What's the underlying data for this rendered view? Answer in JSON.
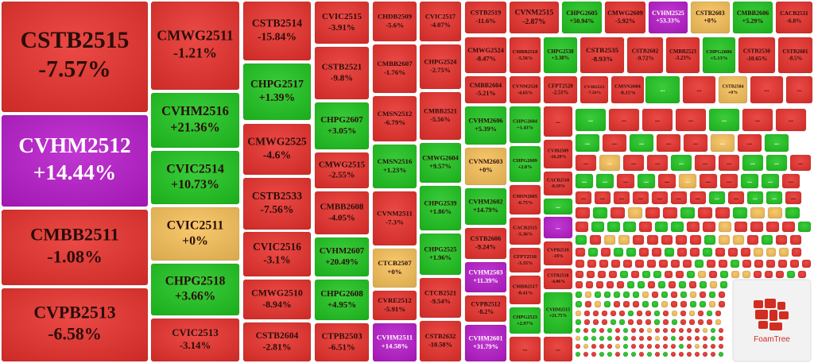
{
  "tiles": [
    {
      "code": "CSTB2515",
      "change": "-7.57%",
      "color": "#e8312c"
    },
    {
      "code": "CVHM2512",
      "change": "+14.44%",
      "color": "#b81ccb"
    },
    {
      "code": "CMBB2511",
      "change": "-1.08%",
      "color": "#e8312c"
    },
    {
      "code": "CVPB2513",
      "change": "-6.58%",
      "color": "#e8312c"
    },
    {
      "code": "CMWG2511",
      "change": "-1.21%",
      "color": "#e8312c"
    },
    {
      "code": "CVHM2516",
      "change": "+21.36%",
      "color": "#20c520"
    },
    {
      "code": "CVIC2514",
      "change": "+10.73%",
      "color": "#20c520"
    },
    {
      "code": "CVIC2511",
      "change": "+0%",
      "color": "#f8c15a"
    },
    {
      "code": "CHPG2518",
      "change": "+3.66%",
      "color": "#20c520"
    },
    {
      "code": "CVIC2513",
      "change": "-3.14%",
      "color": "#e8312c"
    },
    {
      "code": "CSTB2514",
      "change": "-15.84%",
      "color": "#e8312c"
    },
    {
      "code": "CHPG2517",
      "change": "+1.39%",
      "color": "#20c520"
    },
    {
      "code": "CMWG2525",
      "change": "-4.6%",
      "color": "#e8312c"
    },
    {
      "code": "CSTB2533",
      "change": "-7.56%",
      "color": "#e8312c"
    },
    {
      "code": "CVIC2516",
      "change": "-3.1%",
      "color": "#e8312c"
    },
    {
      "code": "CMWG2510",
      "change": "-8.94%",
      "color": "#e8312c"
    },
    {
      "code": "CSTB2604",
      "change": "-2.81%",
      "color": "#e8312c"
    },
    {
      "code": "CVIC2515",
      "change": "-3.91%",
      "color": "#e8312c"
    },
    {
      "code": "CSTB2521",
      "change": "-9.8%",
      "color": "#e8312c"
    },
    {
      "code": "CHPG2607",
      "change": "+3.05%",
      "color": "#20c520"
    },
    {
      "code": "CMWG2515",
      "change": "-2.55%",
      "color": "#e8312c"
    },
    {
      "code": "CMBB2608",
      "change": "-4.05%",
      "color": "#e8312c"
    },
    {
      "code": "CVHM2607",
      "change": "+20.49%",
      "color": "#20c520"
    },
    {
      "code": "CHPG2608",
      "change": "+4.95%",
      "color": "#20c520"
    },
    {
      "code": "CTPB2503",
      "change": "-6.51%",
      "color": "#e8312c"
    },
    {
      "code": "CHDB2509",
      "change": "-5.6%",
      "color": "#e8312c"
    },
    {
      "code": "CMBB2607",
      "change": "-1.76%",
      "color": "#e8312c"
    },
    {
      "code": "CMSN2512",
      "change": "-6.79%",
      "color": "#e8312c"
    },
    {
      "code": "CMSN2516",
      "change": "+1.23%",
      "color": "#20c520"
    },
    {
      "code": "CVNM2511",
      "change": "-7.3%",
      "color": "#e8312c"
    },
    {
      "code": "CTCB2507",
      "change": "+0%",
      "color": "#f8c15a"
    },
    {
      "code": "CVRE2512",
      "change": "-5.91%",
      "color": "#e8312c"
    },
    {
      "code": "CVHM2511",
      "change": "+14.58%",
      "color": "#b81ccb"
    },
    {
      "code": "CVIC2517",
      "change": "-4.07%",
      "color": "#e8312c"
    },
    {
      "code": "CHPG2524",
      "change": "-2.75%",
      "color": "#e8312c"
    },
    {
      "code": "CMBB2521",
      "change": "-5.56%",
      "color": "#e8312c"
    },
    {
      "code": "CMWG2604",
      "change": "+9.57%",
      "color": "#20c520"
    },
    {
      "code": "CHPG2539",
      "change": "+1.86%",
      "color": "#20c520"
    },
    {
      "code": "CHPG2525",
      "change": "+1.96%",
      "color": "#20c520"
    },
    {
      "code": "CTCB2521",
      "change": "-9.54%",
      "color": "#e8312c"
    },
    {
      "code": "CSTB2632",
      "change": "-10.58%",
      "color": "#e8312c"
    },
    {
      "code": "CSTB2519",
      "change": "-11.6%",
      "color": "#e8312c"
    },
    {
      "code": "CVNM2515",
      "change": "-2.87%",
      "color": "#e8312c"
    },
    {
      "code": "CHPG2605",
      "change": "+50.94%",
      "color": "#20c520"
    },
    {
      "code": "CMWG2609",
      "change": "-5.92%",
      "color": "#e8312c"
    },
    {
      "code": "CVHM2525",
      "change": "+53.33%",
      "color": "#b81ccb"
    },
    {
      "code": "CSTB2603",
      "change": "+0%",
      "color": "#f8c15a"
    },
    {
      "code": "CMBB2606",
      "change": "+5.29%",
      "color": "#20c520"
    },
    {
      "code": "CACB2511",
      "change": "-6.8%",
      "color": "#e8312c"
    },
    {
      "code": "CMWG2524",
      "change": "-8.47%",
      "color": "#e8312c"
    },
    {
      "code": "CMBB2518",
      "change": "-5.56%",
      "color": "#e8312c"
    },
    {
      "code": "CHPG2538",
      "change": "+3.38%",
      "color": "#20c520"
    },
    {
      "code": "CSTB2535",
      "change": "-8.93%",
      "color": "#e8312c"
    },
    {
      "code": "CSTB2602",
      "change": "-9.72%",
      "color": "#e8312c"
    },
    {
      "code": "CMBB2523",
      "change": "-3.23%",
      "color": "#e8312c"
    },
    {
      "code": "CHPG2606",
      "change": "+5.13%",
      "color": "#20c520"
    },
    {
      "code": "CSTB2530",
      "change": "-10.65%",
      "color": "#e8312c"
    },
    {
      "code": "CSTB2601",
      "change": "-8.5%",
      "color": "#e8312c"
    },
    {
      "code": "CMBB2604",
      "change": "-5.21%",
      "color": "#e8312c"
    },
    {
      "code": "CVNM2520",
      "change": "-4.65%",
      "color": "#e8312c"
    },
    {
      "code": "CFPT2520",
      "change": "-2.51%",
      "color": "#e8312c"
    },
    {
      "code": "CVIB2513",
      "change": "-7.26%",
      "color": "#e8312c"
    },
    {
      "code": "CMSN2604",
      "change": "-8.15%",
      "color": "#e8312c"
    },
    {
      "code": "CSTB2504",
      "change": "+0%",
      "color": "#f8c15a"
    },
    {
      "code": "CVHM2606",
      "change": "+5.39%",
      "color": "#20c520"
    },
    {
      "code": "CVNM2603",
      "change": "+0%",
      "color": "#f8c15a"
    },
    {
      "code": "CVHM2602",
      "change": "+14.79%",
      "color": "#20c520"
    },
    {
      "code": "CSTB2606",
      "change": "-9.24%",
      "color": "#e8312c"
    },
    {
      "code": "CVHM2503",
      "change": "+11.39%",
      "color": "#b81ccb"
    },
    {
      "code": "CVPB2512",
      "change": "-8.2%",
      "color": "#e8312c"
    },
    {
      "code": "CVHM2601",
      "change": "+31.79%",
      "color": "#b81ccb"
    },
    {
      "code": "CHPG2604",
      "change": "+1.43%",
      "color": "#20c520"
    },
    {
      "code": "CHPG2609",
      "change": "+2.8%",
      "color": "#20c520"
    },
    {
      "code": "CMSN2605",
      "change": "-6.75%",
      "color": "#e8312c"
    },
    {
      "code": "CACB2515",
      "change": "-5.36%",
      "color": "#e8312c"
    },
    {
      "code": "CFPT2516",
      "change": "-3.35%",
      "color": "#e8312c"
    },
    {
      "code": "CMBB2517",
      "change": "-8.41%",
      "color": "#e8312c"
    },
    {
      "code": "CHPG2523",
      "change": "+2.97%",
      "color": "#20c520"
    },
    {
      "code": "CVIB2509",
      "change": "-16.29%",
      "color": "#e8312c"
    },
    {
      "code": "CACB2510",
      "change": "-8.19%",
      "color": "#e8312c"
    },
    {
      "code": "CVPB2519",
      "change": "-18%",
      "color": "#e8312c"
    },
    {
      "code": "CSTB2518",
      "change": "-4.06%",
      "color": "#e8312c"
    },
    {
      "code": "CVHM2515",
      "change": "+21.75%",
      "color": "#20c520"
    }
  ],
  "ellipsis": "...",
  "logo_text": "FoamTree"
}
